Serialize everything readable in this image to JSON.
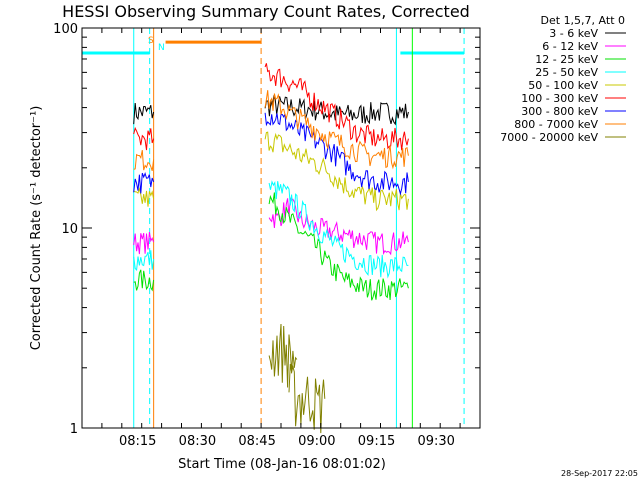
{
  "chart_data": {
    "type": "line",
    "title": "HESSI Observing Summary Count Rates, Corrected",
    "ylabel": "Corrected Count Rate (s⁻¹ detector⁻¹)",
    "xlabel": "Start Time (08-Jan-16 08:01:02)",
    "timestamp": "28-Sep-2017 22:05",
    "y_scale": "log",
    "ylim": [
      1,
      100
    ],
    "xlim": [
      "08:01",
      "09:41"
    ],
    "x_ticks": [
      "08:15",
      "08:30",
      "08:45",
      "09:00",
      "09:15",
      "09:30"
    ],
    "y_ticks": [
      "1",
      "10",
      "100"
    ],
    "legend": {
      "placement": "right",
      "header": "Det 1,5,7, Att 0",
      "entries": [
        {
          "label": "3 - 6 keV",
          "color": "#000000"
        },
        {
          "label": "6 - 12 keV",
          "color": "#ff00ff"
        },
        {
          "label": "12 - 25 keV",
          "color": "#00e000"
        },
        {
          "label": "25 - 50 keV",
          "color": "#00ffff"
        },
        {
          "label": "50 - 100 keV",
          "color": "#c8c800"
        },
        {
          "label": "100 - 300 keV",
          "color": "#ff0000"
        },
        {
          "label": "300 - 800 keV",
          "color": "#0000ff"
        },
        {
          "label": "800 - 7000 keV",
          "color": "#ff7f00"
        },
        {
          "label": "7000 - 20000 keV",
          "color": "#808000"
        }
      ]
    },
    "intervals": {
      "night": {
        "color": "#00ffff",
        "periods": [
          [
            "08:01",
            "08:18"
          ],
          [
            "09:21",
            "09:37"
          ]
        ],
        "level": 75
      },
      "saa": {
        "color": "#ff7f00",
        "periods": [
          [
            "08:22",
            "08:46"
          ]
        ],
        "level": 85
      },
      "flag_labels": [
        "S",
        "N"
      ]
    },
    "vlines": [
      {
        "t": "08:14",
        "color": "#00ffff",
        "style": "solid"
      },
      {
        "t": "08:18",
        "color": "#00ffff",
        "style": "dashed"
      },
      {
        "t": "08:19",
        "color": "#ff7f00",
        "style": "solid"
      },
      {
        "t": "08:46",
        "color": "#ff7f00",
        "style": "dashed"
      },
      {
        "t": "09:20",
        "color": "#00ffff",
        "style": "solid"
      },
      {
        "t": "09:24",
        "color": "#00ff00",
        "style": "solid"
      },
      {
        "t": "09:37",
        "color": "#00ffff",
        "style": "dashed"
      }
    ],
    "series": [
      {
        "name": "3 - 6 keV",
        "color": "#000000",
        "segments": [
          {
            "t": [
              "08:14",
              "08:19"
            ],
            "y": [
              38,
              38
            ]
          },
          {
            "t": [
              "08:47",
              "08:51",
              "08:55",
              "09:00",
              "09:05",
              "09:10",
              "09:15",
              "09:19",
              "09:23"
            ],
            "y": [
              41,
              41,
              40,
              39,
              37,
              37,
              38,
              38,
              38
            ]
          }
        ]
      },
      {
        "name": "6 - 12 keV",
        "color": "#ff00ff",
        "segments": [
          {
            "t": [
              "08:14",
              "08:19"
            ],
            "y": [
              8.5,
              8.5
            ]
          },
          {
            "t": [
              "08:48",
              "08:50",
              "08:53",
              "08:56",
              "09:00",
              "09:05",
              "09:10",
              "09:15",
              "09:20",
              "09:23"
            ],
            "y": [
              12,
              11,
              13,
              11,
              10,
              9.5,
              9,
              8.5,
              8.5,
              8.5
            ]
          }
        ]
      },
      {
        "name": "12 - 25 keV",
        "color": "#00e000",
        "segments": [
          {
            "t": [
              "08:14",
              "08:19"
            ],
            "y": [
              5.5,
              5.5
            ]
          },
          {
            "t": [
              "08:48",
              "08:50",
              "08:53",
              "08:56",
              "09:00",
              "09:03",
              "09:07",
              "09:12",
              "09:17",
              "09:23"
            ],
            "y": [
              14,
              13,
              11,
              9.5,
              8,
              6.5,
              5.5,
              5,
              5,
              5
            ]
          }
        ]
      },
      {
        "name": "25 - 50 keV",
        "color": "#00ffff",
        "segments": [
          {
            "t": [
              "08:14",
              "08:19"
            ],
            "y": [
              7,
              7
            ]
          },
          {
            "t": [
              "08:48",
              "08:52",
              "08:55",
              "09:00",
              "09:05",
              "09:10",
              "09:15",
              "09:20",
              "09:23"
            ],
            "y": [
              16,
              15,
              13,
              10,
              8,
              7,
              6.5,
              6.5,
              6.5
            ]
          }
        ]
      },
      {
        "name": "50 - 100 keV",
        "color": "#c8c800",
        "segments": [
          {
            "t": [
              "08:14",
              "08:19"
            ],
            "y": [
              14,
              14
            ]
          },
          {
            "t": [
              "08:47",
              "08:50",
              "08:54",
              "08:58",
              "09:02",
              "09:06",
              "09:10",
              "09:15",
              "09:20",
              "09:23"
            ],
            "y": [
              28,
              27,
              24,
              22,
              20,
              17,
              15,
              14,
              14,
              14
            ]
          }
        ]
      },
      {
        "name": "100 - 300 keV",
        "color": "#ff0000",
        "segments": [
          {
            "t": [
              "08:14",
              "08:19"
            ],
            "y": [
              28,
              28
            ]
          },
          {
            "t": [
              "08:47",
              "08:50",
              "08:53",
              "08:56",
              "08:59",
              "09:02",
              "09:06",
              "09:10",
              "09:15",
              "09:20",
              "09:23"
            ],
            "y": [
              60,
              58,
              54,
              50,
              44,
              40,
              35,
              30,
              28,
              28,
              28
            ]
          }
        ]
      },
      {
        "name": "300 - 800 keV",
        "color": "#0000ff",
        "segments": [
          {
            "t": [
              "08:14",
              "08:19"
            ],
            "y": [
              17,
              17
            ]
          },
          {
            "t": [
              "08:47",
              "08:50",
              "08:53",
              "08:56",
              "09:00",
              "09:04",
              "09:08",
              "09:12",
              "09:16",
              "09:20",
              "09:23"
            ],
            "y": [
              38,
              36,
              33,
              30,
              27,
              24,
              20,
              18,
              17,
              17,
              17
            ]
          }
        ]
      },
      {
        "name": "800 - 7000 keV",
        "color": "#ff7f00",
        "segments": [
          {
            "t": [
              "08:14",
              "08:19"
            ],
            "y": [
              22,
              22
            ]
          },
          {
            "t": [
              "08:47",
              "08:50",
              "08:53",
              "08:57",
              "09:01",
              "09:05",
              "09:09",
              "09:13",
              "09:17",
              "09:23"
            ],
            "y": [
              44,
              42,
              38,
              34,
              30,
              27,
              25,
              23,
              23,
              23
            ]
          }
        ]
      },
      {
        "name": "7000 - 20000 keV",
        "color": "#808000",
        "segments": [
          {
            "t": [
              "08:48",
              "08:50",
              "08:52",
              "08:53",
              "08:55"
            ],
            "y": [
              2.4,
              2.6,
              2.5,
              2.3,
              2.2
            ]
          },
          {
            "t": [
              "08:53",
              "08:56",
              "08:59",
              "09:00",
              "09:02"
            ],
            "y": [
              1.6,
              1.4,
              1.5,
              1.3,
              1.4
            ]
          }
        ]
      }
    ]
  }
}
